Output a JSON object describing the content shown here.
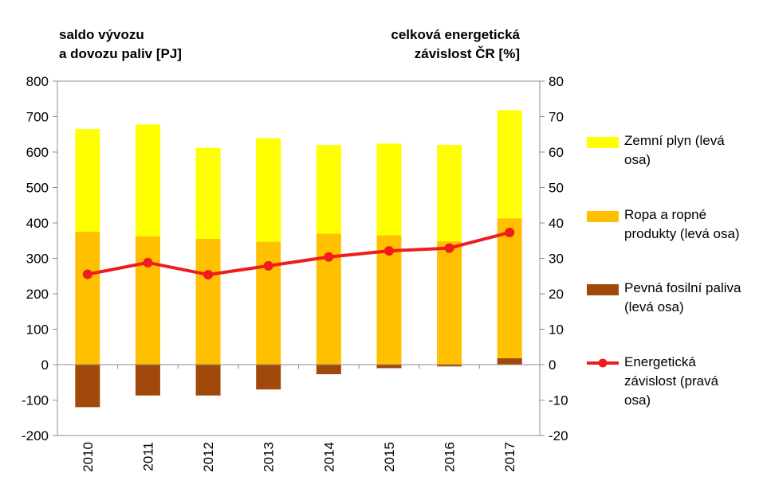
{
  "chart_data": {
    "type": "bar",
    "categories": [
      "2010",
      "2011",
      "2012",
      "2013",
      "2014",
      "2015",
      "2016",
      "2017"
    ],
    "left_axis": {
      "title_lines": [
        "saldo vývozu",
        "a dovozu paliv [PJ]"
      ],
      "ylim": [
        -200,
        800
      ],
      "ticks": [
        "800",
        "700",
        "600",
        "500",
        "400",
        "300",
        "200",
        "100",
        "0",
        "-100",
        "-200"
      ],
      "tick_values": [
        800,
        700,
        600,
        500,
        400,
        300,
        200,
        100,
        0,
        -100,
        -200
      ]
    },
    "right_axis": {
      "title_lines": [
        "celková energetická",
        "závislost ČR [%]"
      ],
      "ylim": [
        -20,
        80
      ],
      "ticks": [
        "80",
        "70",
        "60",
        "50",
        "40",
        "30",
        "20",
        "10",
        "0",
        "-10",
        "-20"
      ],
      "tick_values": [
        80,
        70,
        60,
        50,
        40,
        30,
        20,
        10,
        0,
        -10,
        -20
      ]
    },
    "series": [
      {
        "key": "solid",
        "name_lines": [
          "Pevná fosilní paliva",
          "(levá osa)"
        ],
        "axis": "left",
        "kind": "bar",
        "color": "#a0490b",
        "values": [
          -120,
          -87,
          -87,
          -70,
          -27,
          -10,
          -5,
          18
        ]
      },
      {
        "key": "oil",
        "name_lines": [
          "Ropa a ropné",
          "produkty (levá osa)"
        ],
        "axis": "left",
        "kind": "bar",
        "color": "#ffc000",
        "values": [
          375,
          362,
          355,
          347,
          370,
          365,
          348,
          395
        ]
      },
      {
        "key": "gas",
        "name_lines": [
          "Zemní plyn (levá",
          "osa)"
        ],
        "axis": "left",
        "kind": "bar",
        "color": "#ffff00",
        "values": [
          290,
          316,
          257,
          292,
          250,
          259,
          272,
          305
        ]
      },
      {
        "key": "dependency",
        "name_lines": [
          "Energetická",
          "závislost (pravá",
          "osa)"
        ],
        "axis": "right",
        "kind": "line",
        "color": "#ee1c1c",
        "values": [
          25.5,
          28.8,
          25.4,
          27.9,
          30.4,
          32.1,
          32.9,
          37.3
        ]
      }
    ],
    "grid": false
  }
}
